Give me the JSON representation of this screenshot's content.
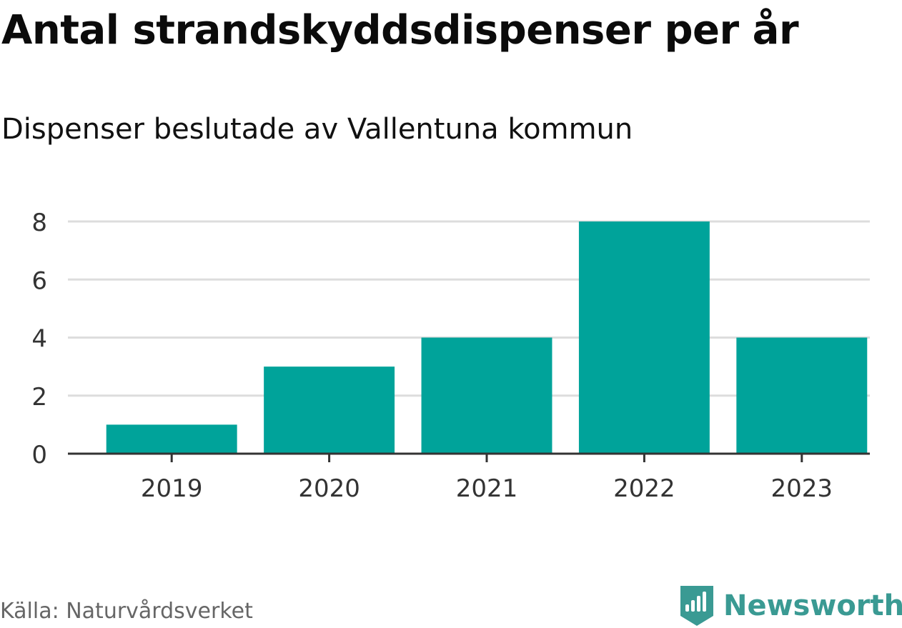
{
  "title": "Antal strandskyddsdispenser per år",
  "subtitle": "Dispenser beslutade av Vallentuna kommun",
  "source": "Källa: Naturvårdsverket",
  "brand": {
    "name": "Newsworthy",
    "icon": "newsworthy-logo-icon",
    "color": "#3a9a93"
  },
  "colors": {
    "bar": "#00a39a",
    "grid": "#dddddd",
    "axis": "#333333",
    "tick_label": "#333333"
  },
  "chart_data": {
    "type": "bar",
    "title": "Antal strandskyddsdispenser per år",
    "subtitle": "Dispenser beslutade av Vallentuna kommun",
    "categories": [
      "2019",
      "2020",
      "2021",
      "2022",
      "2023"
    ],
    "values": [
      1,
      3,
      4,
      8,
      4
    ],
    "xlabel": "",
    "ylabel": "",
    "ylim": [
      0,
      8
    ],
    "yticks": [
      0,
      2,
      4,
      6,
      8
    ],
    "grid": true,
    "legend": "none"
  }
}
